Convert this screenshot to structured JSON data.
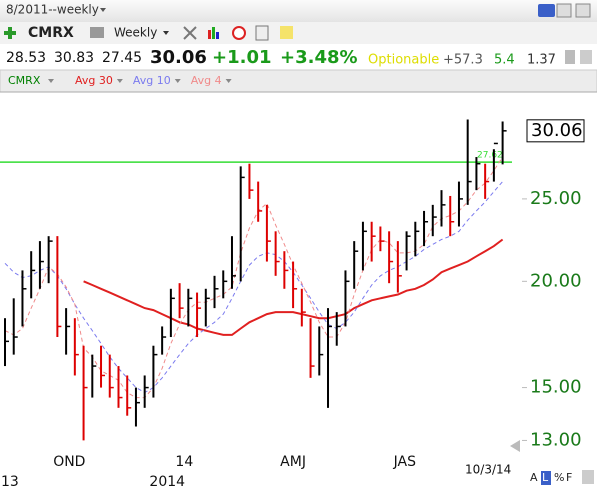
{
  "toolbar": {
    "period": "8/2011--weekly",
    "symbol": "CMRX",
    "interval": "Weekly"
  },
  "quote": {
    "open": "28.53",
    "high": "30.83",
    "low": "27.45",
    "last": "30.06",
    "change": "+1.01",
    "change_pct": "+3.48%",
    "optionable": "Optionable",
    "stat1": "+57.3",
    "stat2": "5.4",
    "stat3": "1.37"
  },
  "footer": {
    "date": "10/3/14",
    "buttons": [
      "A",
      "L",
      "%",
      "F"
    ]
  },
  "chart_data": {
    "type": "ohlc",
    "symbol": "CMRX",
    "symbol_color": "#008000",
    "categories": [
      null,
      null,
      null,
      "OND",
      null,
      null,
      null,
      null,
      null,
      null,
      null,
      null,
      null,
      null,
      null,
      null,
      null,
      "14",
      null,
      null,
      null,
      null,
      null,
      null,
      null,
      null,
      null,
      null,
      null,
      "AMJ",
      null,
      null,
      null,
      null,
      null,
      null,
      null,
      null,
      null,
      null,
      null,
      null,
      "JAS",
      null,
      null,
      null,
      null,
      null,
      null,
      null,
      null,
      null,
      null,
      null,
      null,
      null,
      null,
      null
    ],
    "years": [
      "13",
      null,
      null,
      null,
      null,
      null,
      null,
      null,
      null,
      null,
      null,
      null,
      null,
      null,
      null,
      null,
      null,
      "2014",
      null,
      null,
      null,
      null,
      null,
      null,
      null,
      null,
      null,
      null,
      null,
      null,
      null,
      null,
      null,
      null,
      null,
      null,
      null,
      null,
      null,
      null,
      null,
      null,
      null,
      null,
      null,
      null,
      null,
      null,
      null,
      null,
      null,
      null,
      null,
      null,
      null,
      null,
      null,
      null
    ],
    "high": [
      18.1,
      19.1,
      20.6,
      21.7,
      22.3,
      22.6,
      22.6,
      18.6,
      18.1,
      16.8,
      16.4,
      16.8,
      16.4,
      15.9,
      15.5,
      15.0,
      15.5,
      16.8,
      17.7,
      19.6,
      19.9,
      19.6,
      19.4,
      19.6,
      20.3,
      20.6,
      22.6,
      27.3,
      27.5,
      26.2,
      24.6,
      22.9,
      21.7,
      21.1,
      19.6,
      18.1,
      17.7,
      18.6,
      18.4,
      20.6,
      22.3,
      23.5,
      23.5,
      23.2,
      22.9,
      22.3,
      22.9,
      23.5,
      24.2,
      24.6,
      25.6,
      25.2,
      26.2,
      31.0,
      28.0,
      27.5,
      28.6,
      30.83
    ],
    "low": [
      15.9,
      16.4,
      17.7,
      19.1,
      19.6,
      19.9,
      17.2,
      16.4,
      15.5,
      13.0,
      14.6,
      15.0,
      14.6,
      14.2,
      13.9,
      13.5,
      14.2,
      14.6,
      16.4,
      17.2,
      18.1,
      17.7,
      17.2,
      17.7,
      18.6,
      19.1,
      19.6,
      20.0,
      25.0,
      23.5,
      21.1,
      20.3,
      19.6,
      18.6,
      17.7,
      15.4,
      15.5,
      14.2,
      16.8,
      17.7,
      19.6,
      20.6,
      21.1,
      21.7,
      19.9,
      19.4,
      20.6,
      21.4,
      22.0,
      22.6,
      23.2,
      22.6,
      23.2,
      24.6,
      25.6,
      25.0,
      26.2,
      27.45
    ],
    "close": [
      17.0,
      17.2,
      19.6,
      20.6,
      21.1,
      22.3,
      17.7,
      17.7,
      16.4,
      15.0,
      15.9,
      15.5,
      15.0,
      14.6,
      14.2,
      14.4,
      15.0,
      16.4,
      17.2,
      19.1,
      18.6,
      19.1,
      18.6,
      19.1,
      19.6,
      20.0,
      20.3,
      26.5,
      25.6,
      24.2,
      22.3,
      21.1,
      20.6,
      19.6,
      18.4,
      15.9,
      16.4,
      17.7,
      17.7,
      20.0,
      21.7,
      22.9,
      22.6,
      22.3,
      21.1,
      20.3,
      22.6,
      22.9,
      23.5,
      23.8,
      24.6,
      23.5,
      25.0,
      26.2,
      27.5,
      26.2,
      29.05,
      30.06
    ],
    "up_color": "#000000",
    "down_color": "#dd0000",
    "series": [
      {
        "name": "Avg 30",
        "color": "#e02020",
        "dash": false,
        "values": [
          null,
          null,
          null,
          null,
          null,
          null,
          null,
          null,
          null,
          20.0,
          19.8,
          19.6,
          19.4,
          19.2,
          19.0,
          18.8,
          18.6,
          18.5,
          18.3,
          18.1,
          17.9,
          17.8,
          17.6,
          17.5,
          17.4,
          17.3,
          17.3,
          17.6,
          17.9,
          18.1,
          18.3,
          18.4,
          18.4,
          18.4,
          18.3,
          18.2,
          18.1,
          18.1,
          18.2,
          18.3,
          18.6,
          18.8,
          19.0,
          19.1,
          19.2,
          19.3,
          19.5,
          19.6,
          19.8,
          20.1,
          20.5,
          20.7,
          20.9,
          21.1,
          21.4,
          21.7,
          22.0,
          22.4
        ]
      },
      {
        "name": "Avg 10",
        "color": "#7b7bef",
        "dash": true,
        "values": [
          21.0,
          20.5,
          20.2,
          20.3,
          20.6,
          20.8,
          20.3,
          19.6,
          18.8,
          18.1,
          17.5,
          16.9,
          16.3,
          15.8,
          15.4,
          15.0,
          14.8,
          15.0,
          15.4,
          15.9,
          16.4,
          16.9,
          17.3,
          17.6,
          17.9,
          18.3,
          19.1,
          20.0,
          20.9,
          21.4,
          21.6,
          21.5,
          21.1,
          20.5,
          19.8,
          19.1,
          18.4,
          17.8,
          17.6,
          17.9,
          18.4,
          19.1,
          19.8,
          20.3,
          20.6,
          20.8,
          21.1,
          21.4,
          21.8,
          22.1,
          22.4,
          22.6,
          22.9,
          23.6,
          24.2,
          24.8,
          25.5,
          26.2
        ]
      },
      {
        "name": "Avg 4",
        "color": "#f08a8a",
        "dash": true,
        "values": [
          17.5,
          17.3,
          17.6,
          18.6,
          19.6,
          20.8,
          20.4,
          19.7,
          18.8,
          16.7,
          16.3,
          15.7,
          15.5,
          15.3,
          14.8,
          14.6,
          14.6,
          15.0,
          15.8,
          16.9,
          17.8,
          18.5,
          18.9,
          18.9,
          19.1,
          19.3,
          19.7,
          21.6,
          23.1,
          24.2,
          24.7,
          23.3,
          22.1,
          20.9,
          19.9,
          18.9,
          17.9,
          17.2,
          17.2,
          17.9,
          19.3,
          20.6,
          21.8,
          22.4,
          22.2,
          21.6,
          21.6,
          21.7,
          22.1,
          23.2,
          23.7,
          23.9,
          24.2,
          24.8,
          25.6,
          26.1,
          27.0,
          28.0
        ]
      }
    ],
    "hline": {
      "value": 27.62,
      "label": "27.62",
      "color": "#33dd33"
    },
    "ylim": [
      12,
      32.5
    ],
    "log_scale": true,
    "yticks": [
      {
        "value": 13,
        "label": "13.00"
      },
      {
        "value": 15,
        "label": "15.00"
      },
      {
        "value": 20,
        "label": "20.00"
      },
      {
        "value": 25,
        "label": "25.00"
      }
    ],
    "tick_color": "#1a7a1a",
    "last_price": {
      "value": 30.06,
      "label": "30.06"
    }
  }
}
